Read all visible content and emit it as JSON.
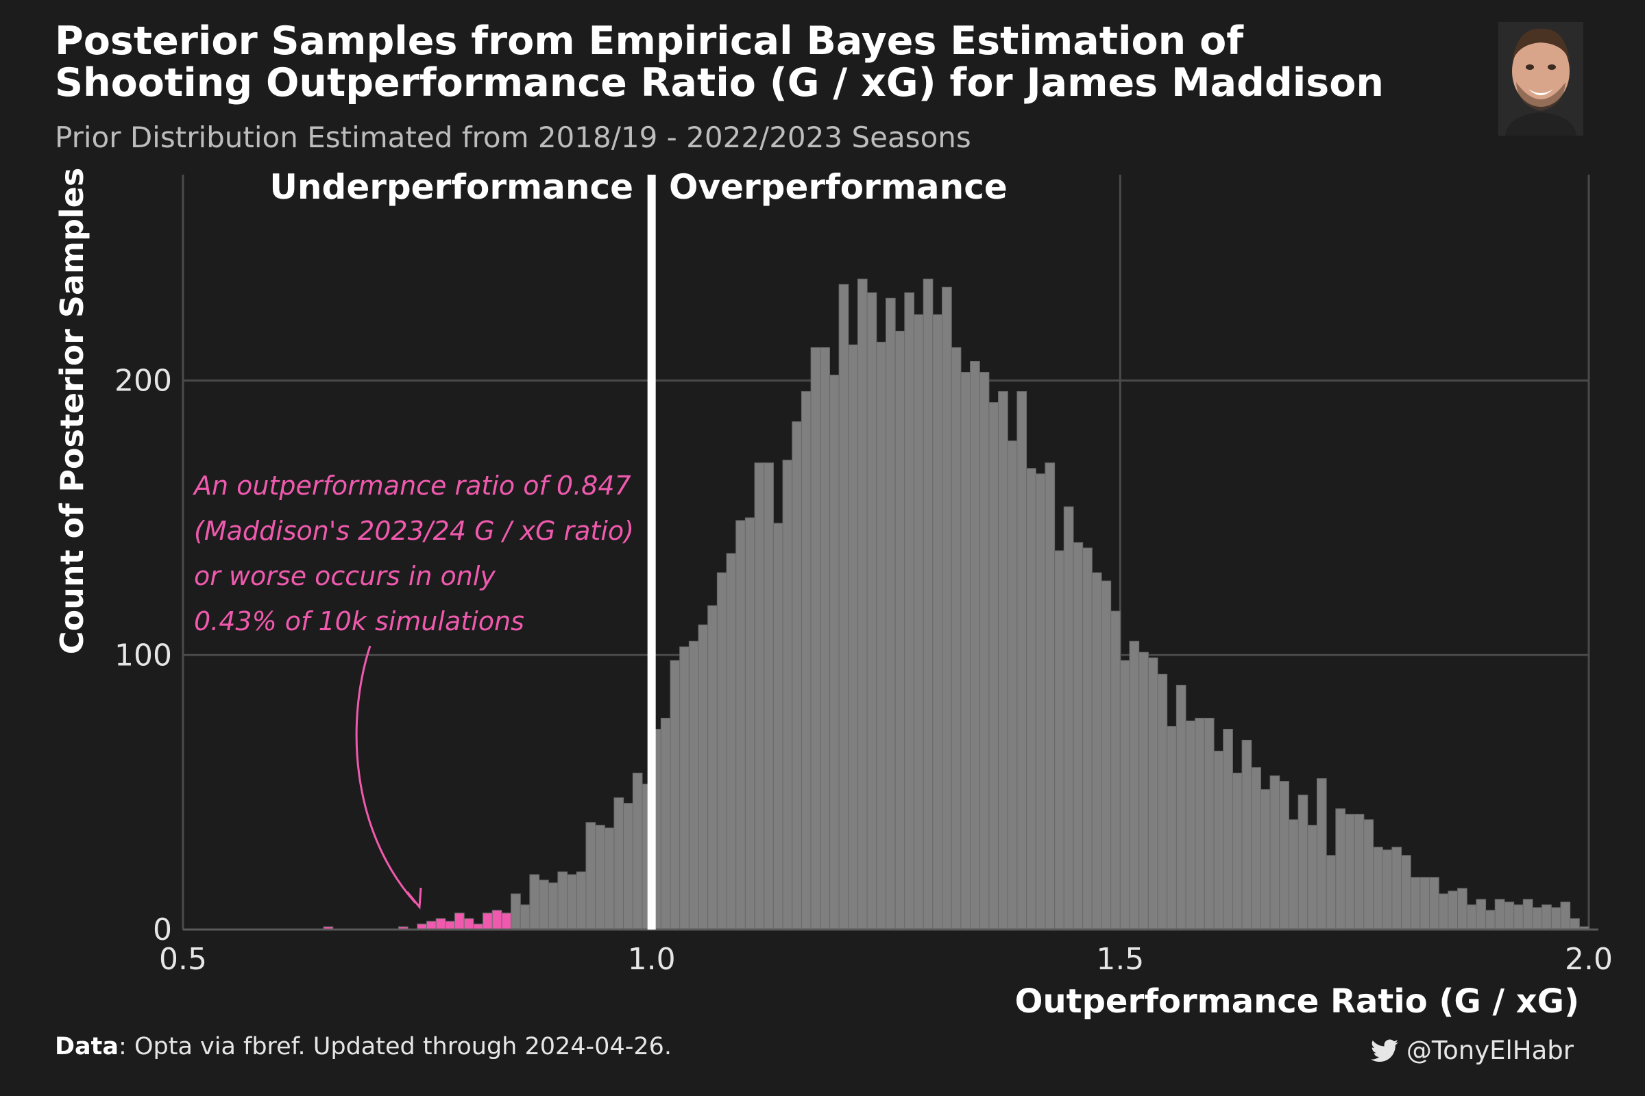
{
  "header": {
    "title_line1": "Posterior Samples from Empirical Bayes Estimation of",
    "title_line2": "Shooting Outperformance Ratio (G / xG) for James Maddison",
    "subtitle": "Prior Distribution Estimated from 2018/19 - 2022/2023 Seasons"
  },
  "regions": {
    "left": "Underperformance",
    "right": "Overperformance"
  },
  "annotation": {
    "lines": [
      "An outperformance ratio of 0.847",
      "(Maddison's 2023/24 G / xG ratio)",
      "or worse occurs in only",
      "0.43% of 10k simulations"
    ]
  },
  "footer": {
    "data_label": "Data",
    "data_text": ": Opta via fbref. Updated through 2024-04-26.",
    "handle": "@TonyElHabr",
    "handle_icon": "twitter-bird-icon"
  },
  "colors": {
    "background": "#1c1c1c",
    "bar": "#7f7f7f",
    "highlight": "#f05aae",
    "grid": "#4a4a4a",
    "reference_line": "#ffffff"
  },
  "chart_data": {
    "type": "bar",
    "title": "Posterior Samples from Empirical Bayes Estimation of Shooting Outperformance Ratio (G / xG) for James Maddison",
    "xlabel": "Outperformance Ratio (G / xG)",
    "ylabel": "Count of Posterior Samples",
    "xlim": [
      0.5,
      2.0
    ],
    "ylim": [
      0,
      275
    ],
    "x_ticks": [
      0.5,
      1.0,
      1.5,
      2.0
    ],
    "x_tick_labels": [
      "0.5",
      "1.0",
      "1.5",
      "2.0"
    ],
    "y_ticks": [
      0,
      100,
      200
    ],
    "y_tick_labels": [
      "0",
      "100",
      "200"
    ],
    "grid": true,
    "reference_line_x": 1.0,
    "highlight_threshold": 0.847,
    "bin_width": 0.01,
    "series": [
      {
        "x": [
          0.655,
          0.735,
          0.755,
          0.765,
          0.775,
          0.785,
          0.795,
          0.805,
          0.815,
          0.825,
          0.835,
          0.845,
          0.855,
          0.865,
          0.875,
          0.885,
          0.895,
          0.905,
          0.915,
          0.925,
          0.935,
          0.945,
          0.955,
          0.965,
          0.975,
          0.985,
          0.995,
          1.005,
          1.015,
          1.025,
          1.035,
          1.045,
          1.055,
          1.065,
          1.075,
          1.085,
          1.095,
          1.105,
          1.115,
          1.125,
          1.135,
          1.145,
          1.155,
          1.165,
          1.175,
          1.185,
          1.195,
          1.205,
          1.215,
          1.225,
          1.235,
          1.245,
          1.255,
          1.265,
          1.275,
          1.285,
          1.295,
          1.305,
          1.315,
          1.325,
          1.335,
          1.345,
          1.355,
          1.365,
          1.375,
          1.385,
          1.395,
          1.405,
          1.415,
          1.425,
          1.435,
          1.445,
          1.455,
          1.465,
          1.475,
          1.485,
          1.495,
          1.505,
          1.515,
          1.525,
          1.535,
          1.545,
          1.555,
          1.565,
          1.575,
          1.585,
          1.595,
          1.605,
          1.615,
          1.625,
          1.635,
          1.645,
          1.655,
          1.665,
          1.675,
          1.685,
          1.695,
          1.705,
          1.715,
          1.725,
          1.735,
          1.745,
          1.755,
          1.765,
          1.775,
          1.785,
          1.795,
          1.805,
          1.815,
          1.825,
          1.835,
          1.845,
          1.855,
          1.865,
          1.875,
          1.885,
          1.895,
          1.905,
          1.915,
          1.925,
          1.935,
          1.945,
          1.955,
          1.965,
          1.975,
          1.985,
          1.995
        ],
        "values": [
          1,
          1,
          2,
          3,
          4,
          3,
          6,
          4,
          2,
          6,
          7,
          6,
          13,
          9,
          20,
          18,
          17,
          21,
          20,
          21,
          39,
          38,
          37,
          48,
          46,
          57,
          53,
          73,
          77,
          98,
          103,
          105,
          111,
          118,
          130,
          137,
          149,
          150,
          170,
          170,
          148,
          171,
          185,
          196,
          212,
          212,
          202,
          235,
          213,
          237,
          232,
          214,
          230,
          218,
          232,
          224,
          237,
          224,
          234,
          212,
          203,
          207,
          203,
          192,
          196,
          178,
          196,
          168,
          166,
          170,
          138,
          154,
          141,
          139,
          130,
          127,
          116,
          98,
          105,
          101,
          99,
          93,
          74,
          89,
          76,
          77,
          77,
          65,
          73,
          57,
          69,
          59,
          51,
          56,
          54,
          40,
          49,
          38,
          55,
          27,
          44,
          42,
          42,
          40,
          30,
          29,
          30,
          27,
          19,
          19,
          19,
          13,
          14,
          15,
          9,
          11,
          7,
          11,
          10,
          9,
          11,
          8,
          9,
          8,
          10,
          4,
          1
        ]
      }
    ]
  }
}
